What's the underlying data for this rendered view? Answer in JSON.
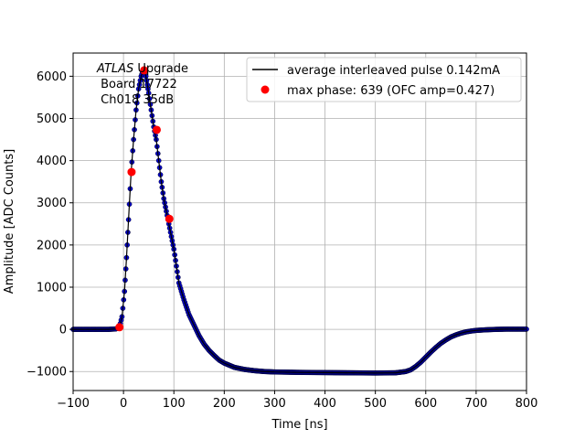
{
  "chart_data": {
    "type": "line",
    "xlabel": "Time [ns]",
    "ylabel": "Amplitude [ADC Counts]",
    "xlim": [
      -100,
      800
    ],
    "ylim": [
      -1450,
      6550
    ],
    "xticks": [
      -100,
      0,
      100,
      200,
      300,
      400,
      500,
      600,
      700,
      800
    ],
    "yticks": [
      -1000,
      0,
      1000,
      2000,
      3000,
      4000,
      5000,
      6000
    ],
    "grid": true,
    "legend_position": "top-right",
    "annotation": {
      "line1_italic": "ATLAS",
      "line1_rest": " Upgrade",
      "line2": " Board 17722",
      "line3": " Ch018 35dB"
    },
    "series": [
      {
        "name": "average interleaved pulse 0.142mA",
        "line_color": "#000000",
        "marker_color": "#0000cc",
        "x": [
          -100,
          -60,
          -30,
          -15,
          -8,
          -3,
          2,
          6,
          10,
          15,
          20,
          25,
          30,
          35,
          38,
          41,
          43,
          46,
          50,
          55,
          60,
          65,
          70,
          75,
          80,
          85,
          90,
          95,
          100,
          105,
          110,
          120,
          130,
          140,
          150,
          160,
          170,
          180,
          190,
          200,
          220,
          240,
          260,
          280,
          300,
          350,
          400,
          450,
          500,
          540,
          560,
          570,
          580,
          590,
          600,
          610,
          620,
          630,
          640,
          650,
          660,
          670,
          680,
          690,
          700,
          720,
          740,
          760,
          780,
          800
        ],
        "y": [
          0,
          0,
          0,
          10,
          60,
          300,
          900,
          1700,
          2600,
          3700,
          4500,
          5200,
          5700,
          6000,
          6100,
          6150,
          6100,
          5900,
          5600,
          5200,
          4800,
          4500,
          4000,
          3500,
          3100,
          2800,
          2500,
          2200,
          1900,
          1500,
          1100,
          700,
          350,
          100,
          -150,
          -350,
          -500,
          -620,
          -730,
          -800,
          -900,
          -950,
          -980,
          -1000,
          -1010,
          -1020,
          -1025,
          -1030,
          -1035,
          -1030,
          -1000,
          -960,
          -880,
          -780,
          -660,
          -540,
          -430,
          -330,
          -250,
          -180,
          -130,
          -90,
          -60,
          -40,
          -25,
          -10,
          0,
          5,
          5,
          5
        ]
      },
      {
        "name": "max phase: 639 (OFC amp=0.427)",
        "marker_color": "#ff0000",
        "x": [
          -8,
          16,
          41,
          66,
          91
        ],
        "y": [
          50,
          3730,
          6140,
          4730,
          2620
        ]
      }
    ]
  }
}
